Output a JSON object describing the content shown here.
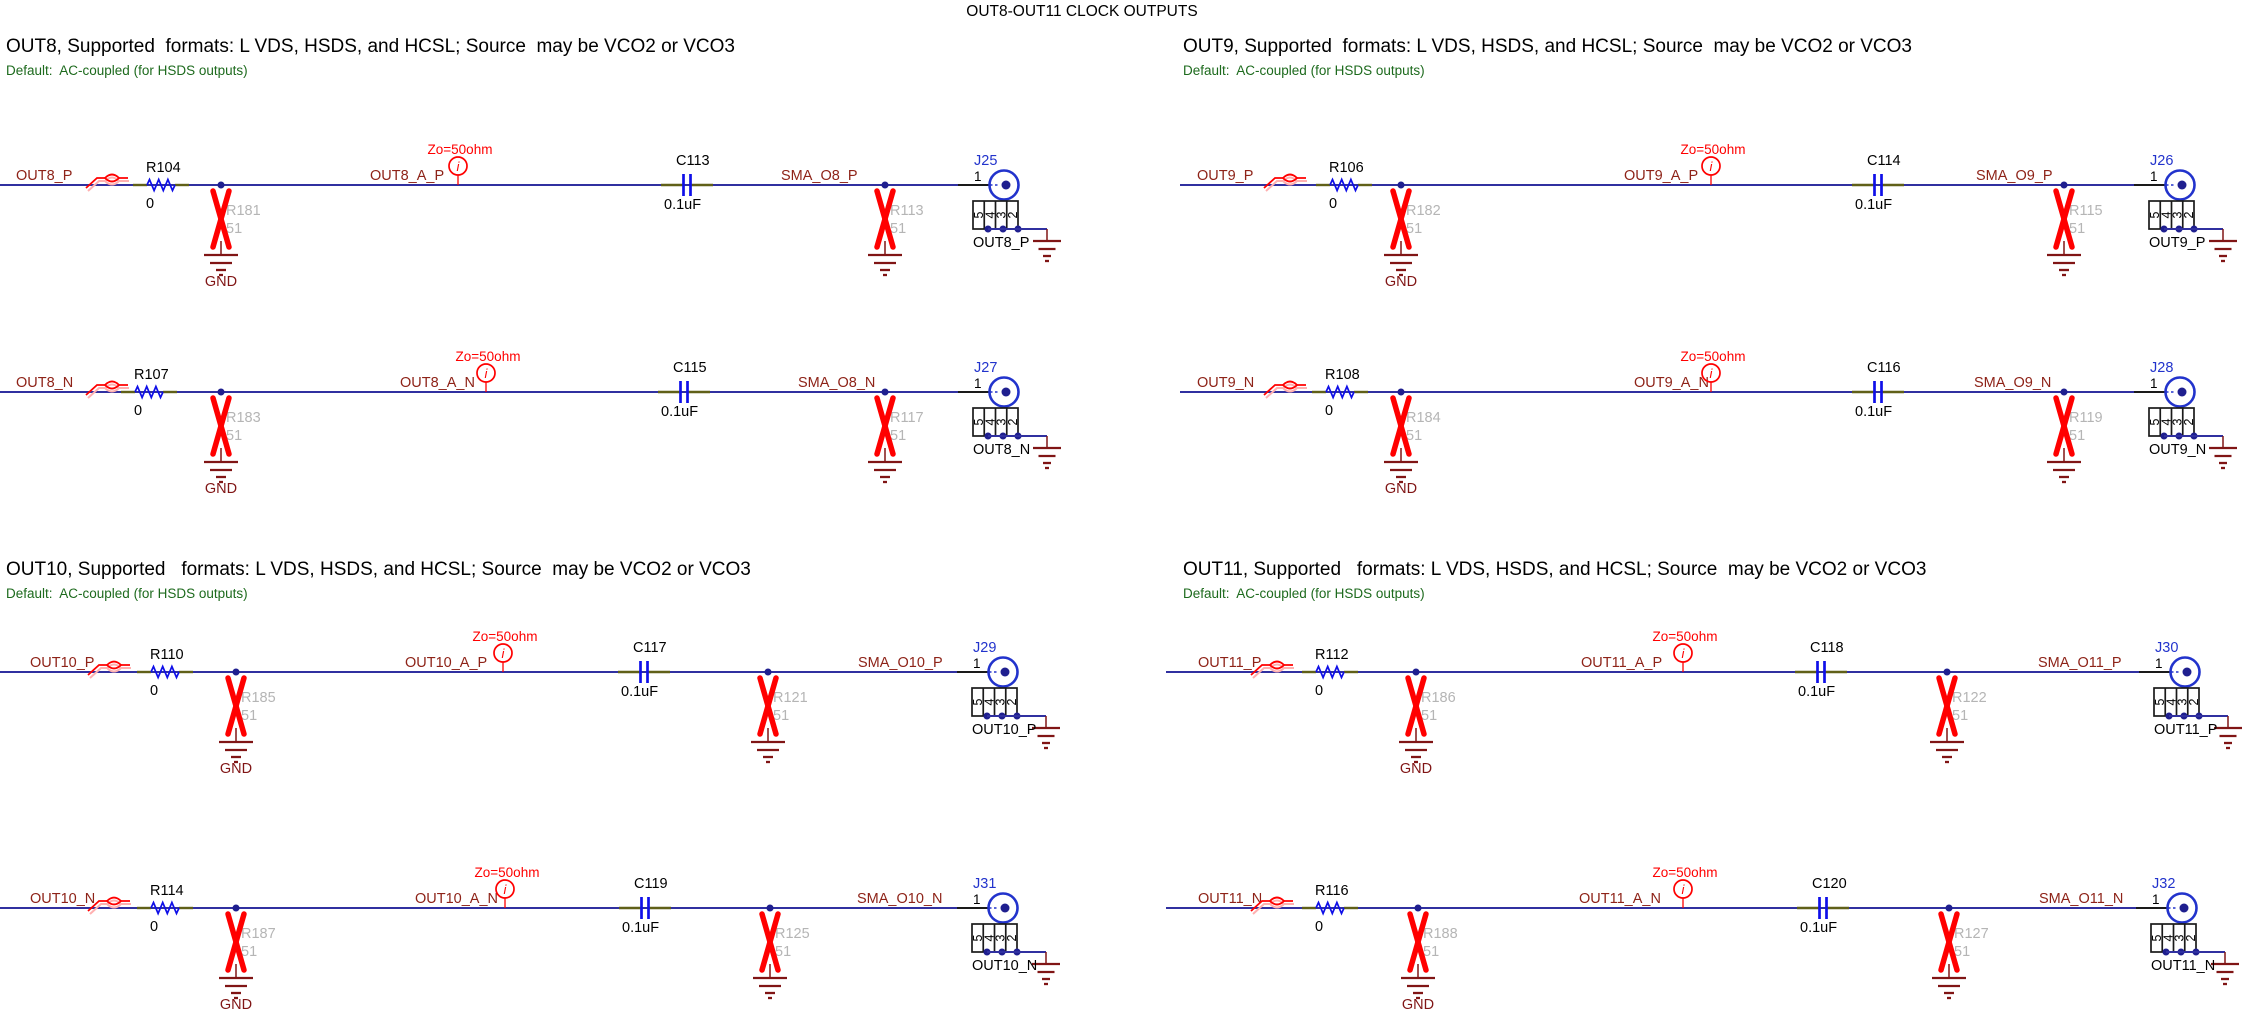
{
  "title": "OUT8-OUT11 CLOCK OUTPUTS",
  "colors": {
    "wire": "#3030a0",
    "junction": "#1f1f8f",
    "net_label": "#8e2318",
    "ground": "#801515",
    "dnp_red": "#ff0000",
    "dnp_shadow": "#ffb0b0",
    "dnp_gray": "#b5b5b5",
    "component_blue": "#0f0fe8",
    "connector_blue": "#2233cc",
    "lead_olive": "#606018",
    "black": "#1a1a1a",
    "note_green": "#1d6a1d"
  },
  "sections": [
    {
      "heading": "OUT8, Supported  formats: L VDS, HSDS, and HCSL; Source  may be VCO2 or VCO3",
      "default_note": "Default:  AC-coupled (for HSDS outputs)",
      "rows": [
        {
          "input_net": "OUT8_P",
          "series_resistor": {
            "ref": "R104",
            "value": "0"
          },
          "shunt_resistor": {
            "ref": "R181",
            "value": "51",
            "populated": false
          },
          "mid_net": "OUT8_A_P",
          "impedance_note": "Zo=50ohm",
          "capacitor": {
            "ref": "C113",
            "value": "0.1uF"
          },
          "sma_net": "SMA_O8_P",
          "termination_resistor": {
            "ref": "R113",
            "value": "51",
            "populated": false
          },
          "connector": {
            "ref": "J25",
            "pin": "1",
            "pads": [
              "5",
              "4",
              "3",
              "2"
            ],
            "net_label": "OUT8_P"
          },
          "ground_label": "GND"
        },
        {
          "input_net": "OUT8_N",
          "series_resistor": {
            "ref": "R107",
            "value": "0"
          },
          "shunt_resistor": {
            "ref": "R183",
            "value": "51",
            "populated": false
          },
          "mid_net": "OUT8_A_N",
          "impedance_note": "Zo=50ohm",
          "capacitor": {
            "ref": "C115",
            "value": "0.1uF"
          },
          "sma_net": "SMA_O8_N",
          "termination_resistor": {
            "ref": "R117",
            "value": "51",
            "populated": false
          },
          "connector": {
            "ref": "J27",
            "pin": "1",
            "pads": [
              "5",
              "4",
              "3",
              "2"
            ],
            "net_label": "OUT8_N"
          },
          "ground_label": "GND"
        }
      ]
    },
    {
      "heading": "OUT9, Supported  formats: L VDS, HSDS, and HCSL; Source  may be VCO2 or VCO3",
      "default_note": "Default:  AC-coupled (for HSDS outputs)",
      "rows": [
        {
          "input_net": "OUT9_P",
          "series_resistor": {
            "ref": "R106",
            "value": "0"
          },
          "shunt_resistor": {
            "ref": "R182",
            "value": "51",
            "populated": false
          },
          "mid_net": "OUT9_A_P",
          "impedance_note": "Zo=50ohm",
          "capacitor": {
            "ref": "C114",
            "value": "0.1uF"
          },
          "sma_net": "SMA_O9_P",
          "termination_resistor": {
            "ref": "R115",
            "value": "51",
            "populated": false
          },
          "connector": {
            "ref": "J26",
            "pin": "1",
            "pads": [
              "5",
              "4",
              "3",
              "2"
            ],
            "net_label": "OUT9_P"
          },
          "ground_label": "GND"
        },
        {
          "input_net": "OUT9_N",
          "series_resistor": {
            "ref": "R108",
            "value": "0"
          },
          "shunt_resistor": {
            "ref": "R184",
            "value": "51",
            "populated": false
          },
          "mid_net": "OUT9_A_N",
          "impedance_note": "Zo=50ohm",
          "capacitor": {
            "ref": "C116",
            "value": "0.1uF"
          },
          "sma_net": "SMA_O9_N",
          "termination_resistor": {
            "ref": "R119",
            "value": "51",
            "populated": false
          },
          "connector": {
            "ref": "J28",
            "pin": "1",
            "pads": [
              "5",
              "4",
              "3",
              "2"
            ],
            "net_label": "OUT9_N"
          },
          "ground_label": "GND"
        }
      ]
    },
    {
      "heading": "OUT10, Supported   formats: L VDS, HSDS, and HCSL; Source  may be VCO2 or VCO3",
      "default_note": "Default:  AC-coupled (for HSDS outputs)",
      "rows": [
        {
          "input_net": "OUT10_P",
          "series_resistor": {
            "ref": "R110",
            "value": "0"
          },
          "shunt_resistor": {
            "ref": "R185",
            "value": "51",
            "populated": false
          },
          "mid_net": "OUT10_A_P",
          "impedance_note": "Zo=50ohm",
          "capacitor": {
            "ref": "C117",
            "value": "0.1uF"
          },
          "sma_net": "SMA_O10_P",
          "termination_resistor": {
            "ref": "R121",
            "value": "51",
            "populated": false
          },
          "connector": {
            "ref": "J29",
            "pin": "1",
            "pads": [
              "5",
              "4",
              "3",
              "2"
            ],
            "net_label": "OUT10_P"
          },
          "ground_label": "GND"
        },
        {
          "input_net": "OUT10_N",
          "series_resistor": {
            "ref": "R114",
            "value": "0"
          },
          "shunt_resistor": {
            "ref": "R187",
            "value": "51",
            "populated": false
          },
          "mid_net": "OUT10_A_N",
          "impedance_note": "Zo=50ohm",
          "capacitor": {
            "ref": "C119",
            "value": "0.1uF"
          },
          "sma_net": "SMA_O10_N",
          "termination_resistor": {
            "ref": "R125",
            "value": "51",
            "populated": false
          },
          "connector": {
            "ref": "J31",
            "pin": "1",
            "pads": [
              "5",
              "4",
              "3",
              "2"
            ],
            "net_label": "OUT10_N"
          },
          "ground_label": "GND"
        }
      ]
    },
    {
      "heading": "OUT11, Supported   formats: L VDS, HSDS, and HCSL; Source  may be VCO2 or VCO3",
      "default_note": "Default:  AC-coupled (for HSDS outputs)",
      "rows": [
        {
          "input_net": "OUT11_P",
          "series_resistor": {
            "ref": "R112",
            "value": "0"
          },
          "shunt_resistor": {
            "ref": "R186",
            "value": "51",
            "populated": false
          },
          "mid_net": "OUT11_A_P",
          "impedance_note": "Zo=50ohm",
          "capacitor": {
            "ref": "C118",
            "value": "0.1uF"
          },
          "sma_net": "SMA_O11_P",
          "termination_resistor": {
            "ref": "R122",
            "value": "51",
            "populated": false
          },
          "connector": {
            "ref": "J30",
            "pin": "1",
            "pads": [
              "5",
              "4",
              "3",
              "2"
            ],
            "net_label": "OUT11_P"
          },
          "ground_label": "GND"
        },
        {
          "input_net": "OUT11_N",
          "series_resistor": {
            "ref": "R116",
            "value": "0"
          },
          "shunt_resistor": {
            "ref": "R188",
            "value": "51",
            "populated": false
          },
          "mid_net": "OUT11_A_N",
          "impedance_note": "Zo=50ohm",
          "capacitor": {
            "ref": "C120",
            "value": "0.1uF"
          },
          "sma_net": "SMA_O11_N",
          "termination_resistor": {
            "ref": "R127",
            "value": "51",
            "populated": false
          },
          "connector": {
            "ref": "J32",
            "pin": "1",
            "pads": [
              "5",
              "4",
              "3",
              "2"
            ],
            "net_label": "OUT11_N"
          },
          "ground_label": "GND"
        }
      ]
    }
  ]
}
